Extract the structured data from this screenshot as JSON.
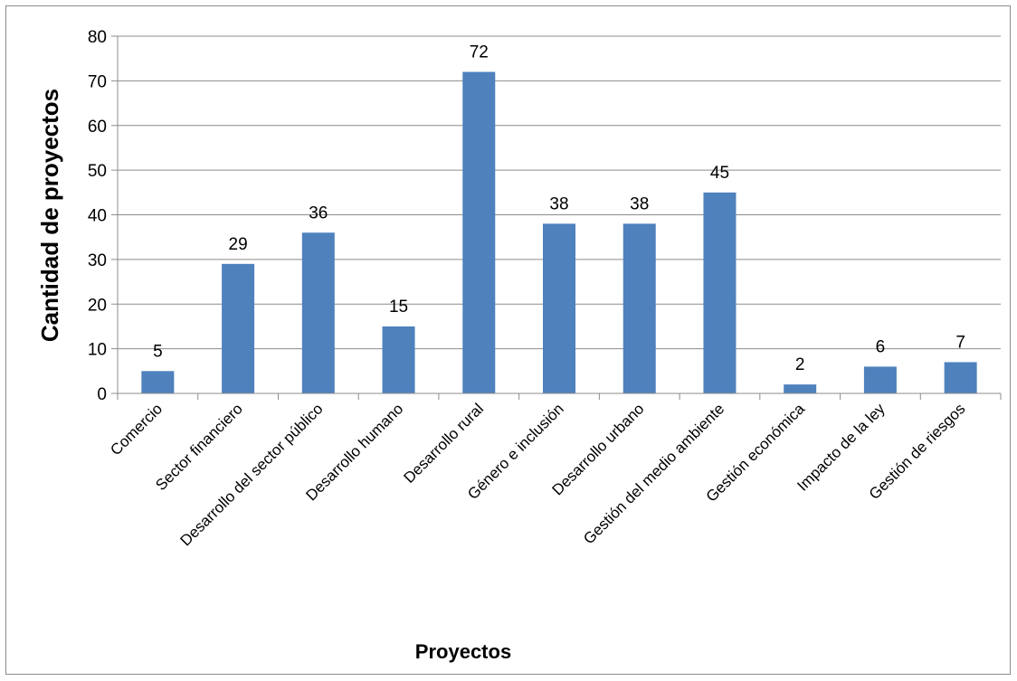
{
  "chart_data": {
    "type": "bar",
    "categories": [
      "Comercio",
      "Sector financiero",
      "Desarrollo del sector público",
      "Desarrollo humano",
      "Desarrollo rural",
      "Género e inclusión",
      "Desarrollo urbano",
      "Gestión del medio ambiente",
      "Gestión económica",
      "Impacto de la ley",
      "Gestión de riesgos"
    ],
    "values": [
      5,
      29,
      36,
      15,
      72,
      38,
      38,
      45,
      2,
      6,
      7
    ],
    "xlabel": "Proyectos",
    "ylabel": "Cantidad de proyectos",
    "ylim": [
      0,
      80
    ],
    "yticks": [
      0,
      10,
      20,
      30,
      40,
      50,
      60,
      70,
      80
    ],
    "grid": true,
    "legend": "none",
    "bar_color": "#4f81bd"
  }
}
